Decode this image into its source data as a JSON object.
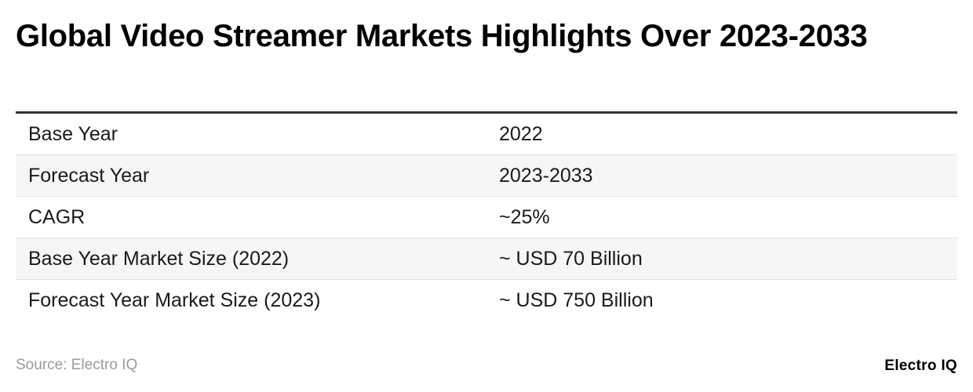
{
  "title": "Global Video Streamer Markets Highlights Over 2023-2033",
  "table": {
    "rows": [
      {
        "label": "Base Year",
        "value": "2022"
      },
      {
        "label": "Forecast Year",
        "value": "2023-2033"
      },
      {
        "label": "CAGR",
        "value": "~25%"
      },
      {
        "label": "Base Year Market Size (2022)",
        "value": "~ USD 70 Billion"
      },
      {
        "label": "Forecast Year Market Size (2023)",
        "value": "~ USD 750 Billion"
      }
    ]
  },
  "footer": {
    "source": "Source: Electro IQ",
    "brand": "Electro IQ"
  },
  "colors": {
    "header_rule": "#333333",
    "stripe": "#f6f6f6",
    "source_text": "#9a9a9a"
  }
}
